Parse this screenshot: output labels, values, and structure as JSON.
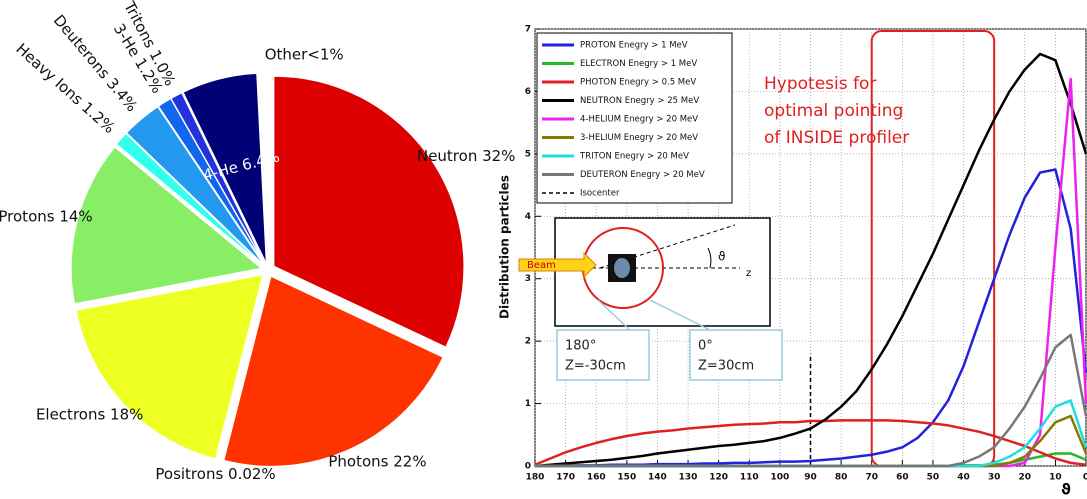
{
  "chart_data": [
    {
      "type": "pie",
      "labels": [
        "Neutron 32%",
        "Photons 22%",
        "Positrons 0.02%",
        "Electrons 18%",
        "Protons 14%",
        "Heavy Ions 1.2%",
        "Deuterons 3.4%",
        "3-He 1.2%",
        "Tritons 1.0%",
        "4-He 6.4%",
        "Other<1%"
      ],
      "values": [
        32,
        22,
        0.02,
        18,
        14,
        1.2,
        3.4,
        1.2,
        1.0,
        6.4,
        0.8
      ],
      "colors": [
        "#dd0000",
        "#ff3300",
        "#ffaa00",
        "#eeff22",
        "#88ee66",
        "#33ffee",
        "#2299ee",
        "#1166ee",
        "#2233dd",
        "#000077",
        "#ffffff"
      ]
    },
    {
      "type": "line",
      "y_label": "Distribution particles",
      "x_label": "ϑ",
      "x": [
        180,
        175,
        170,
        165,
        160,
        155,
        150,
        145,
        140,
        135,
        130,
        125,
        120,
        115,
        110,
        105,
        100,
        95,
        90,
        85,
        80,
        75,
        70,
        65,
        60,
        55,
        50,
        45,
        40,
        35,
        30,
        25,
        20,
        15,
        10,
        5,
        0
      ],
      "xlim": [
        180,
        0
      ],
      "xticks": [
        180,
        170,
        160,
        150,
        140,
        130,
        120,
        110,
        100,
        90,
        80,
        70,
        60,
        50,
        40,
        30,
        20,
        10,
        0
      ],
      "ylim": [
        0,
        7
      ],
      "yticks": [
        0,
        1,
        2,
        3,
        4,
        5,
        6,
        7
      ],
      "grid": true,
      "series": [
        {
          "name": "PROTON Enegry > 1 MeV",
          "color": "#2222dd",
          "values": [
            0,
            0,
            0.01,
            0.01,
            0.01,
            0.02,
            0.02,
            0.02,
            0.03,
            0.03,
            0.03,
            0.04,
            0.04,
            0.05,
            0.05,
            0.06,
            0.07,
            0.07,
            0.08,
            0.1,
            0.12,
            0.15,
            0.18,
            0.23,
            0.3,
            0.45,
            0.7,
            1.05,
            1.6,
            2.3,
            3.0,
            3.7,
            4.3,
            4.7,
            4.75,
            3.8,
            1.5
          ]
        },
        {
          "name": "ELECTRON Enegry > 1 MeV",
          "color": "#22bb22",
          "values": [
            0,
            0,
            0,
            0,
            0,
            0,
            0,
            0,
            0,
            0,
            0,
            0,
            0,
            0,
            0,
            0,
            0,
            0,
            0,
            0,
            0,
            0,
            0,
            0,
            0,
            0,
            0,
            0,
            0.01,
            0.01,
            0.02,
            0.05,
            0.1,
            0.15,
            0.2,
            0.2,
            0.1
          ]
        },
        {
          "name": "PHOTON Enegry > 0.5 MeV",
          "color": "#dd2222",
          "values": [
            0.02,
            0.12,
            0.22,
            0.3,
            0.37,
            0.43,
            0.48,
            0.52,
            0.55,
            0.57,
            0.6,
            0.62,
            0.64,
            0.66,
            0.67,
            0.68,
            0.7,
            0.7,
            0.72,
            0.72,
            0.73,
            0.73,
            0.73,
            0.73,
            0.72,
            0.7,
            0.68,
            0.65,
            0.6,
            0.55,
            0.48,
            0.4,
            0.32,
            0.22,
            0.12,
            0.05,
            0.02
          ]
        },
        {
          "name": "NEUTRON Enegry > 25 MeV",
          "color": "#000000",
          "values": [
            0,
            0.02,
            0.04,
            0.06,
            0.08,
            0.1,
            0.13,
            0.16,
            0.2,
            0.23,
            0.26,
            0.29,
            0.32,
            0.34,
            0.37,
            0.4,
            0.45,
            0.52,
            0.6,
            0.75,
            0.95,
            1.2,
            1.55,
            1.95,
            2.4,
            2.9,
            3.4,
            3.95,
            4.5,
            5.05,
            5.55,
            6.0,
            6.35,
            6.6,
            6.5,
            5.8,
            5.0
          ]
        },
        {
          "name": "4-HELIUM Enegry > 20 MeV",
          "color": "#ee22ee",
          "values": [
            0,
            0,
            0,
            0,
            0,
            0,
            0,
            0,
            0,
            0,
            0,
            0,
            0,
            0,
            0,
            0,
            0,
            0,
            0,
            0,
            0,
            0,
            0,
            0,
            0,
            0,
            0,
            0,
            0,
            0,
            0,
            0,
            0.05,
            0.5,
            3.5,
            6.2,
            1.0
          ]
        },
        {
          "name": "3-HELIUM Enegry > 20 MeV",
          "color": "#887700",
          "values": [
            0,
            0,
            0,
            0,
            0,
            0,
            0,
            0,
            0,
            0,
            0,
            0,
            0,
            0,
            0,
            0,
            0,
            0,
            0,
            0,
            0,
            0,
            0,
            0,
            0,
            0,
            0,
            0,
            0,
            0,
            0,
            0.05,
            0.15,
            0.4,
            0.7,
            0.8,
            0.2
          ]
        },
        {
          "name": "TRITON Enegry > 20 MeV",
          "color": "#22dddd",
          "values": [
            0,
            0,
            0,
            0,
            0,
            0,
            0,
            0,
            0,
            0,
            0,
            0,
            0,
            0,
            0,
            0,
            0,
            0,
            0,
            0,
            0,
            0,
            0,
            0,
            0,
            0,
            0,
            0,
            0,
            0,
            0.05,
            0.15,
            0.3,
            0.6,
            0.95,
            1.05,
            0.3
          ]
        },
        {
          "name": "DEUTERON Enegry > 20 MeV",
          "color": "#777777",
          "values": [
            0,
            0,
            0,
            0,
            0,
            0,
            0,
            0,
            0,
            0,
            0,
            0,
            0,
            0,
            0,
            0,
            0,
            0,
            0,
            0,
            0,
            0,
            0,
            0,
            0,
            0,
            0,
            0,
            0.05,
            0.15,
            0.3,
            0.6,
            0.95,
            1.4,
            1.9,
            2.1,
            0.8
          ]
        }
      ],
      "isocenter": {
        "name": "Isocenter",
        "x": 90,
        "top": 1.8
      },
      "highlight": {
        "x_from": 70,
        "x_to": 30,
        "text": [
          "Hypotesis for",
          "optimal pointing",
          "of INSIDE profiler"
        ]
      },
      "inset": {
        "beam": "Beam",
        "angle": "ϑ",
        "axis": "z",
        "back_angle": "180°",
        "back_z": "Z=-30cm",
        "front_angle": "0°",
        "front_z": "Z=30cm"
      }
    }
  ]
}
